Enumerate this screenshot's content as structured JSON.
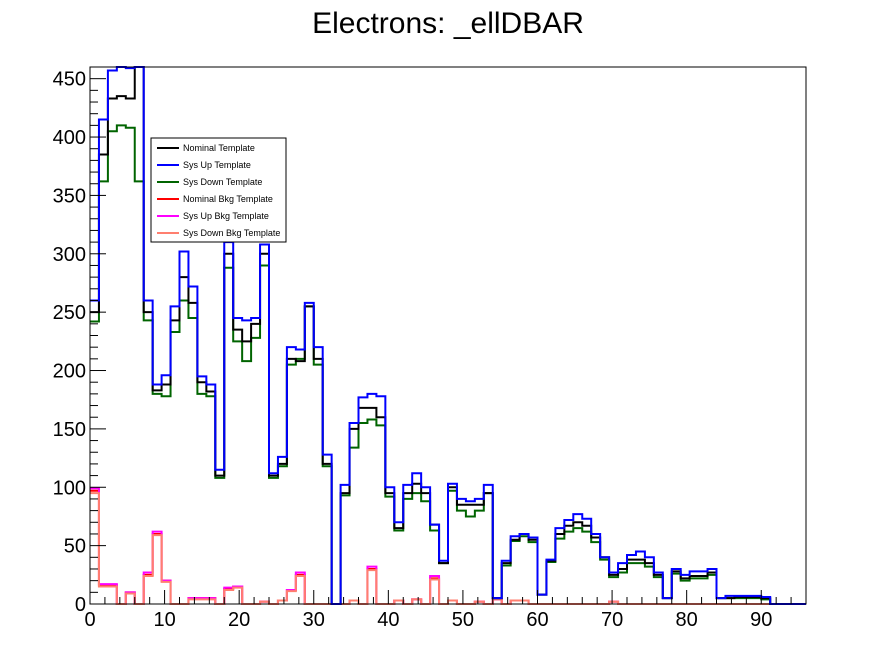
{
  "chart_data": {
    "type": "histogram-step",
    "title": "Electrons: _ellDBAR",
    "xlabel": "",
    "ylabel": "",
    "xlim": [
      0,
      96
    ],
    "ylim": [
      0,
      460
    ],
    "bin_width": 1.2,
    "x_ticks": [
      0,
      10,
      20,
      30,
      40,
      50,
      60,
      70,
      80,
      90
    ],
    "y_ticks": [
      0,
      50,
      100,
      150,
      200,
      250,
      300,
      350,
      400,
      450
    ],
    "legend_position": "upper-left",
    "series": [
      {
        "name": "Nominal Template",
        "color": "#000000",
        "values": [
          250,
          385,
          433,
          435,
          433,
          470,
          250,
          183,
          188,
          243,
          280,
          258,
          190,
          182,
          110,
          300,
          235,
          225,
          240,
          300,
          110,
          120,
          210,
          208,
          255,
          210,
          120,
          0,
          95,
          150,
          168,
          168,
          160,
          95,
          65,
          95,
          103,
          95,
          68,
          35,
          100,
          85,
          85,
          85,
          95,
          5,
          35,
          55,
          60,
          55,
          8,
          37,
          60,
          67,
          70,
          67,
          57,
          40,
          25,
          30,
          38,
          38,
          35,
          25,
          5,
          28,
          22,
          24,
          24,
          27,
          5,
          5,
          6,
          6,
          6,
          5,
          0,
          0,
          0,
          0
        ]
      },
      {
        "name": "Sys Up Template",
        "color": "#0000ff",
        "values": [
          260,
          415,
          457,
          462,
          459,
          475,
          260,
          188,
          196,
          255,
          302,
          272,
          195,
          188,
          115,
          310,
          245,
          243,
          245,
          308,
          112,
          126,
          220,
          218,
          258,
          220,
          128,
          0,
          102,
          155,
          177,
          180,
          178,
          100,
          70,
          102,
          112,
          100,
          68,
          37,
          103,
          90,
          88,
          90,
          102,
          5,
          37,
          58,
          60,
          57,
          8,
          38,
          65,
          72,
          77,
          73,
          60,
          40,
          27,
          35,
          42,
          45,
          40,
          27,
          5,
          30,
          25,
          28,
          28,
          30,
          5,
          7,
          7,
          7,
          7,
          6,
          0,
          0,
          0,
          0
        ]
      },
      {
        "name": "Sys Down Template",
        "color": "#006400",
        "values": [
          242,
          362,
          405,
          410,
          408,
          362,
          243,
          180,
          178,
          233,
          260,
          245,
          180,
          178,
          108,
          288,
          225,
          208,
          228,
          290,
          108,
          118,
          205,
          210,
          255,
          205,
          118,
          0,
          93,
          134,
          155,
          158,
          153,
          92,
          63,
          90,
          95,
          88,
          63,
          35,
          97,
          80,
          75,
          80,
          95,
          5,
          33,
          54,
          58,
          53,
          8,
          36,
          56,
          62,
          65,
          62,
          53,
          38,
          23,
          27,
          35,
          35,
          32,
          23,
          5,
          26,
          20,
          22,
          22,
          25,
          5,
          5,
          5,
          5,
          5,
          4,
          0,
          0,
          0,
          0
        ]
      },
      {
        "name": "Nominal Bkg Template",
        "color": "#ff0000",
        "values": [
          97,
          16,
          16,
          0,
          10,
          0,
          25,
          60,
          20,
          0,
          0,
          5,
          5,
          5,
          0,
          13,
          15,
          0,
          0,
          2,
          0,
          3,
          12,
          25,
          0,
          0,
          0,
          0,
          0,
          3,
          0,
          30,
          0,
          0,
          3,
          0,
          4,
          0,
          22,
          0,
          3,
          0,
          0,
          2,
          0,
          4,
          0,
          3,
          3,
          0,
          0,
          0,
          0,
          0,
          0,
          0,
          0,
          0,
          2,
          0,
          0,
          0,
          0,
          0,
          0,
          0,
          0,
          0,
          0,
          0,
          0,
          0,
          0,
          0,
          0,
          0,
          0,
          0,
          0,
          0
        ]
      },
      {
        "name": "Sys Up Bkg Template",
        "color": "#ff00ff",
        "values": [
          99,
          17,
          17,
          0,
          10,
          0,
          27,
          62,
          20,
          0,
          0,
          5,
          5,
          5,
          0,
          14,
          15,
          0,
          0,
          2,
          0,
          3,
          12,
          27,
          0,
          0,
          0,
          0,
          0,
          3,
          0,
          32,
          0,
          0,
          3,
          0,
          4,
          0,
          24,
          0,
          3,
          0,
          0,
          2,
          0,
          4,
          0,
          3,
          3,
          0,
          0,
          0,
          0,
          0,
          0,
          0,
          0,
          0,
          2,
          0,
          0,
          0,
          0,
          0,
          0,
          0,
          0,
          0,
          0,
          0,
          0,
          0,
          0,
          0,
          0,
          0,
          0,
          0,
          0,
          0
        ]
      },
      {
        "name": "Sys Down Bkg Template",
        "color": "#ff7f6f",
        "values": [
          95,
          15,
          15,
          0,
          9,
          0,
          24,
          59,
          19,
          0,
          0,
          4,
          4,
          4,
          0,
          12,
          14,
          0,
          0,
          2,
          0,
          3,
          11,
          24,
          0,
          0,
          0,
          0,
          0,
          3,
          0,
          29,
          0,
          0,
          3,
          0,
          4,
          0,
          21,
          0,
          3,
          0,
          0,
          2,
          0,
          4,
          0,
          3,
          3,
          0,
          0,
          0,
          0,
          0,
          0,
          0,
          0,
          0,
          2,
          0,
          0,
          0,
          0,
          0,
          0,
          0,
          0,
          0,
          0,
          0,
          0,
          0,
          0,
          0,
          0,
          0,
          0,
          0,
          0,
          0
        ]
      }
    ]
  }
}
